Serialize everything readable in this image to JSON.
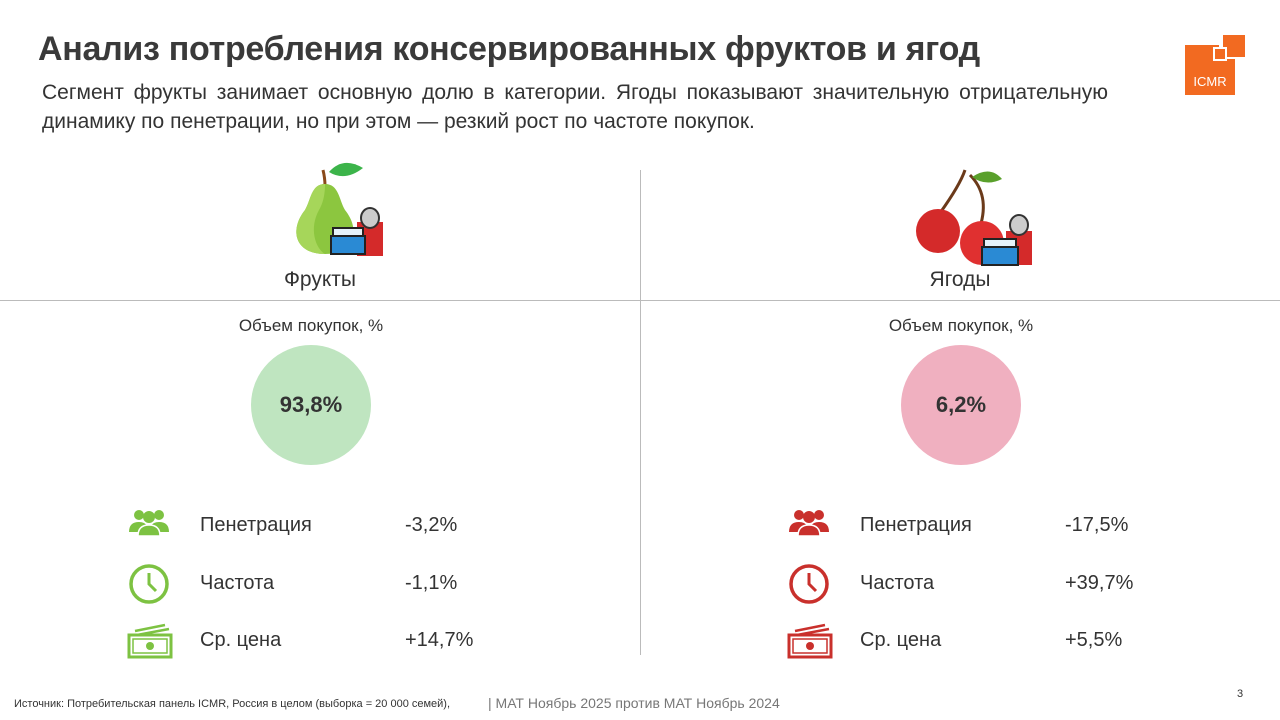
{
  "header": {
    "title": "Анализ потребления консервированных фруктов и ягод",
    "subtitle": "Сегмент фрукты занимает основную долю в категории. Ягоды показывают значительную отрицательную динамику по пенетрации, но при этом — резкий рост по частоте покупок.",
    "logo": "ICMR"
  },
  "panels": [
    {
      "name": "Фрукты",
      "volume_label": "Объем покупок, %",
      "volume": "93,8%",
      "metrics": [
        {
          "label": "Пенетрация",
          "value": "-3,2%"
        },
        {
          "label": "Частота",
          "value": "-1,1%"
        },
        {
          "label": "Ср. цена",
          "value": "+14,7%"
        }
      ]
    },
    {
      "name": "Ягоды",
      "volume_label": "Объем покупок, %",
      "volume": "6,2%",
      "metrics": [
        {
          "label": "Пенетрация",
          "value": "-17,5%"
        },
        {
          "label": "Частота",
          "value": "+39,7%"
        },
        {
          "label": "Ср. цена",
          "value": "+5,5%"
        }
      ]
    }
  ],
  "footer": {
    "source": "Источник: Потребительская панель ICMR, Россия в целом (выборка = 20 000 семей),",
    "period": "| МАТ Ноябрь 2025 против МАТ Ноябрь 2024",
    "page": "3"
  }
}
